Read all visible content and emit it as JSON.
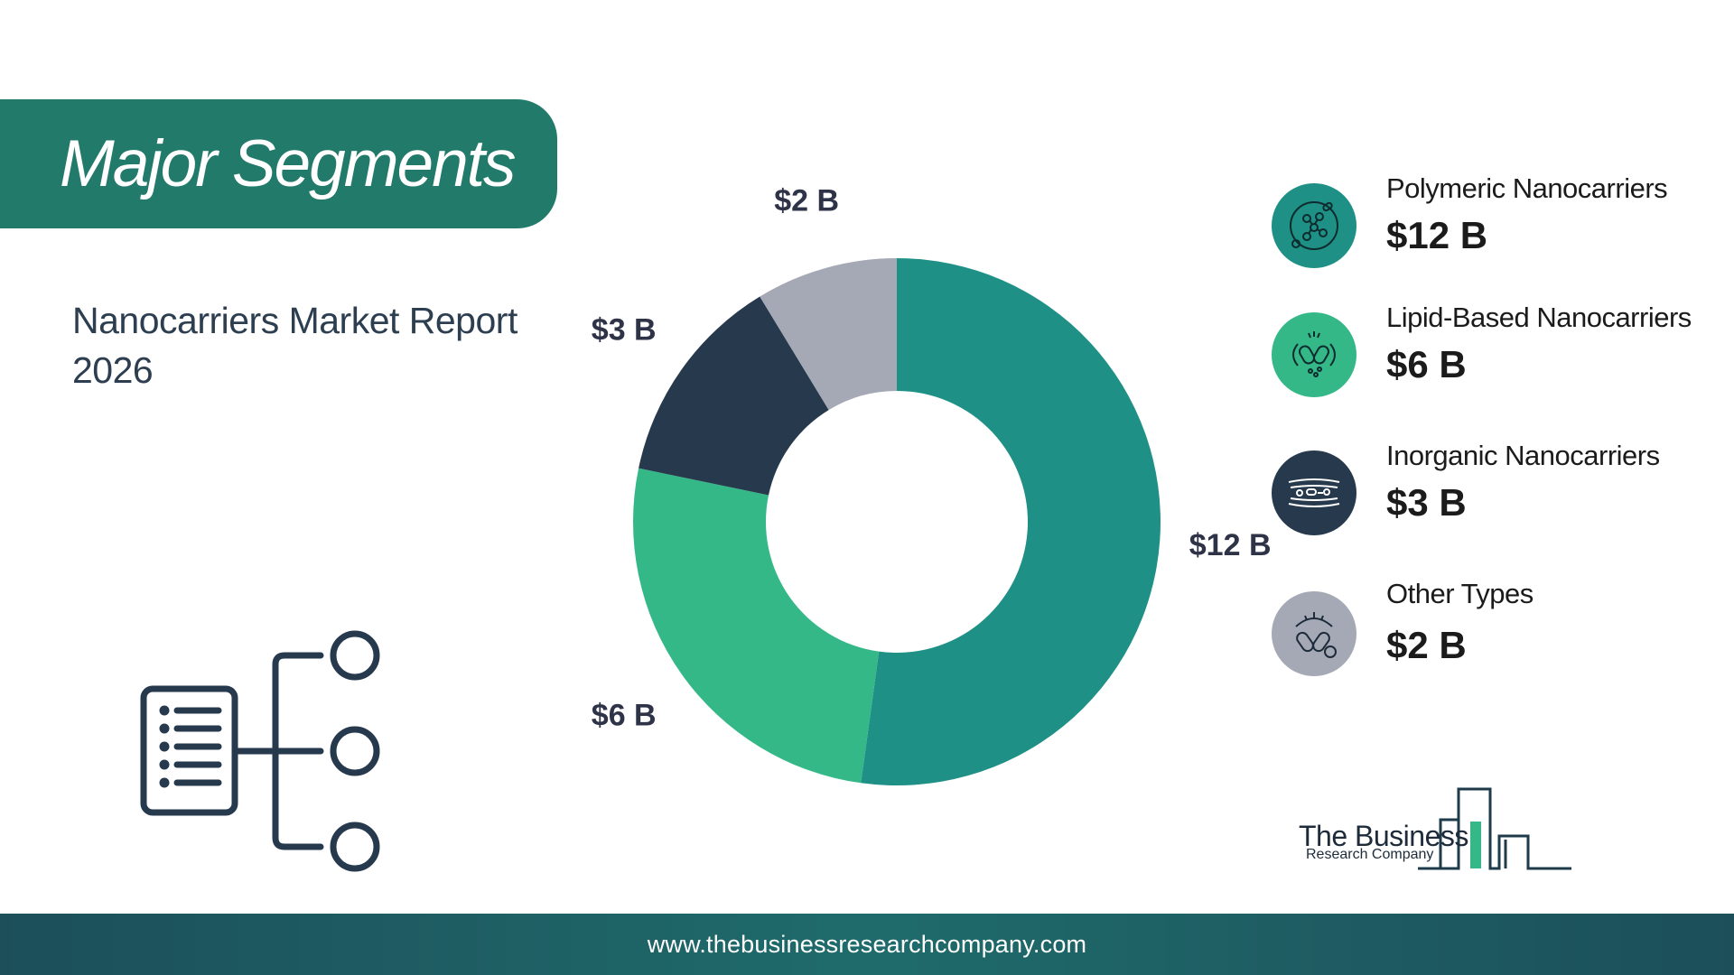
{
  "header": {
    "title": "Major Segments"
  },
  "report": {
    "title": "Nanocarriers Market Report 2026"
  },
  "chart_data": {
    "type": "pie",
    "categories": [
      "Polymeric Nanocarriers",
      "Lipid-Based Nanocarriers",
      "Inorganic Nanocarriers",
      "Other Types"
    ],
    "values": [
      12,
      6,
      3,
      2
    ],
    "data_labels": [
      "$12 B",
      "$6 B",
      "$3 B",
      "$2 B"
    ],
    "colors": [
      "#1e9086",
      "#34b888",
      "#26394d",
      "#a5a9b6"
    ],
    "donut": true
  },
  "legend": [
    {
      "name": "Polymeric Nanocarriers",
      "value": "$12 B",
      "icon": "molecule-icon",
      "color": "#1e9086"
    },
    {
      "name": "Lipid-Based Nanocarriers",
      "value": "$6 B",
      "icon": "capsule-icon",
      "color": "#34b888"
    },
    {
      "name": "Inorganic Nanocarriers",
      "value": "$3 B",
      "icon": "particles-icon",
      "color": "#26394d"
    },
    {
      "name": "Other Types",
      "value": "$2 B",
      "icon": "pill-icon",
      "color": "#a5a9b6"
    }
  ],
  "logo": {
    "line1": "The Business",
    "line2": "Research Company"
  },
  "footer": {
    "url": "www.thebusinessresearchcompany.com"
  }
}
